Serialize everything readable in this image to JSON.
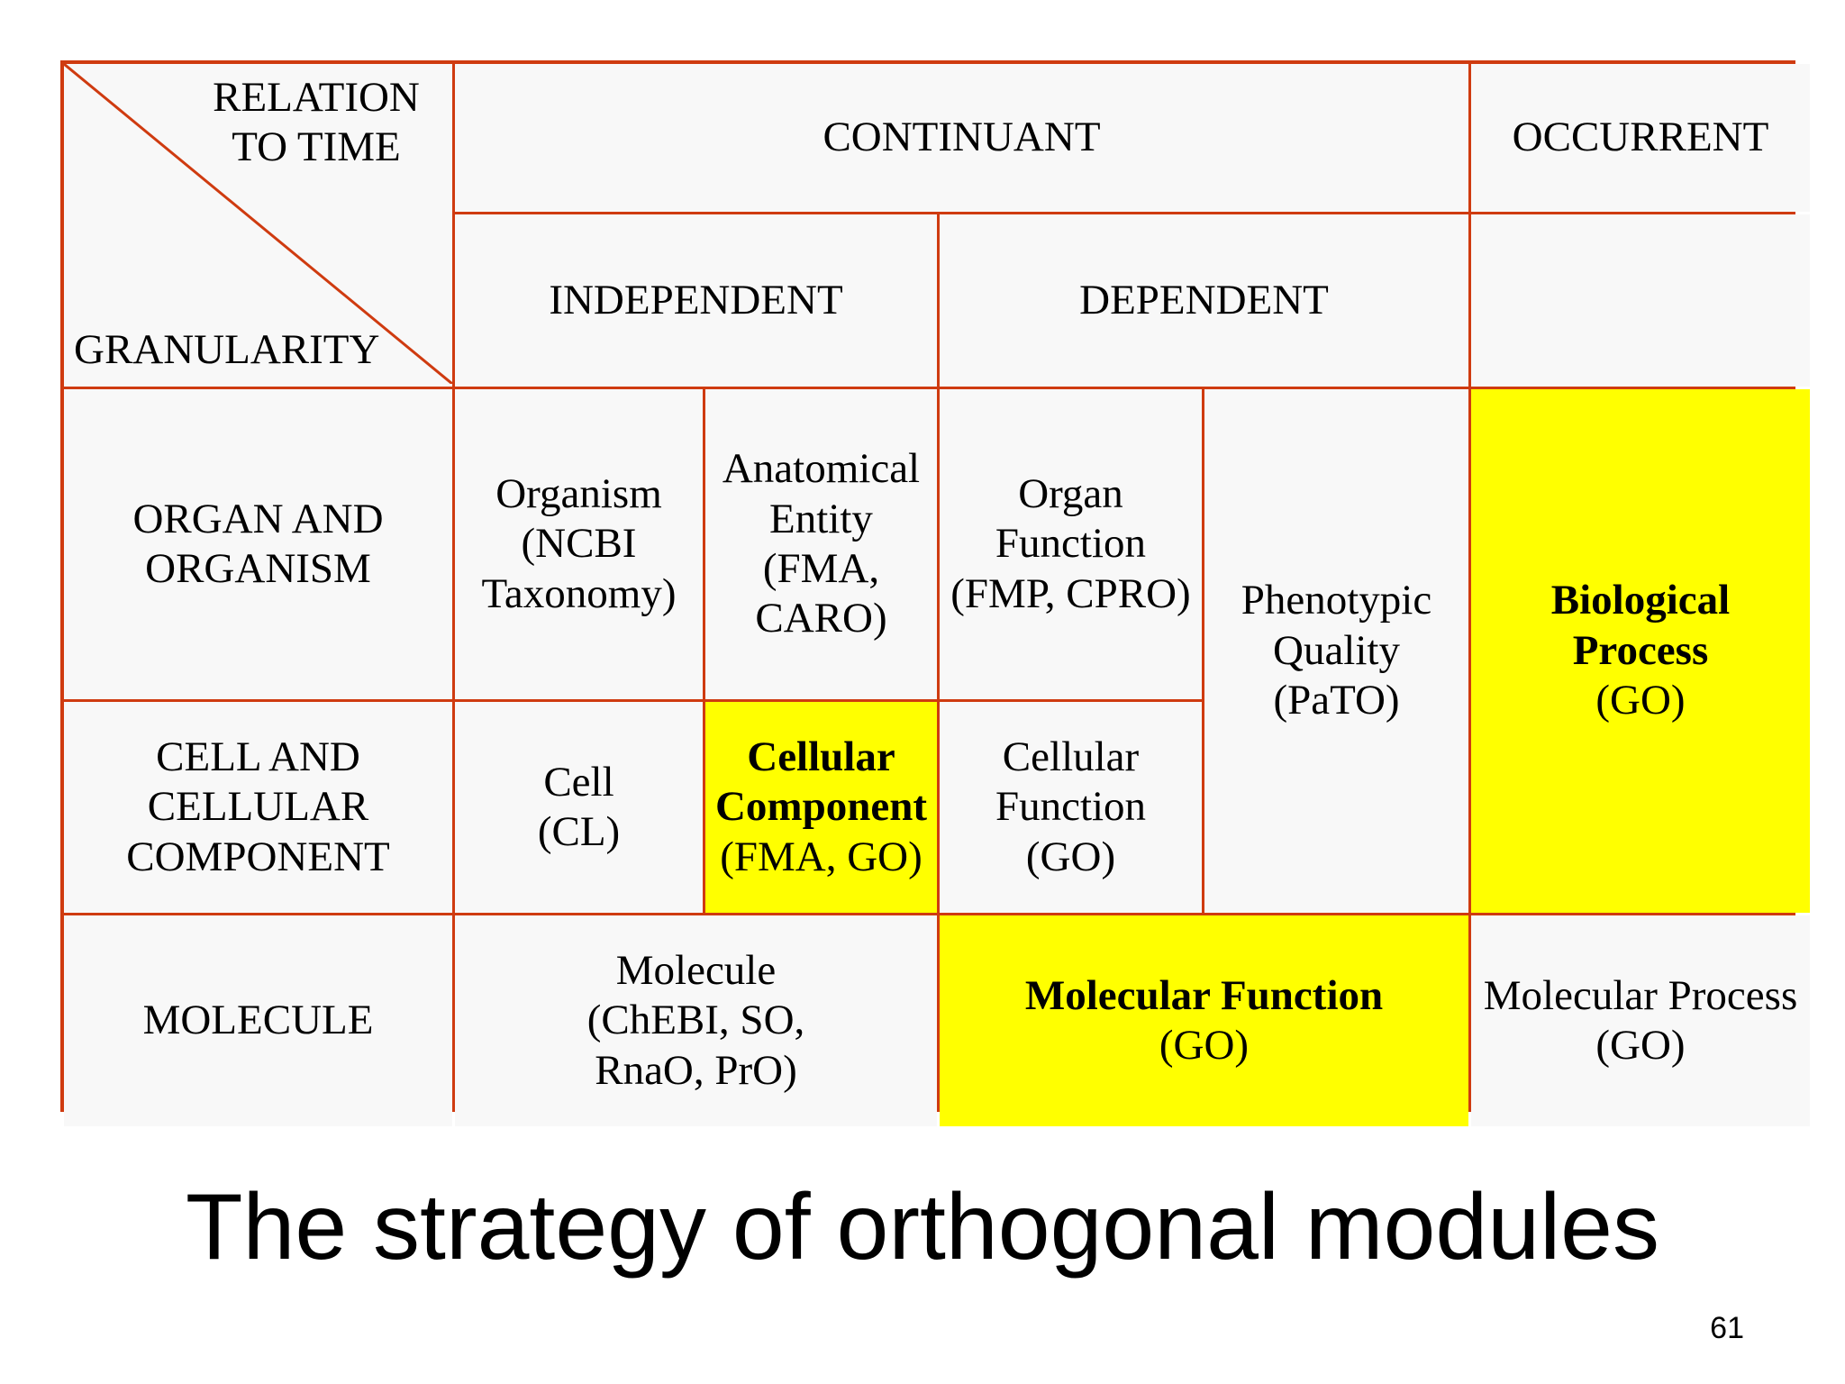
{
  "matrix": {
    "corner": {
      "relation_label": "RELATION\nTO TIME",
      "granularity_label": "GRANULARITY"
    },
    "columns": {
      "continuant": "CONTINUANT",
      "occurrent": "OCCURRENT",
      "independent": "INDEPENDENT",
      "dependent": "DEPENDENT"
    },
    "rows": {
      "organ_organism": "ORGAN AND\nORGANISM",
      "cell": "CELL AND\nCELLULAR\nCOMPONENT",
      "molecule": "MOLECULE"
    },
    "cells": {
      "organism": "Organism\n(NCBI\nTaxonomy)",
      "anatomical_entity": "Anatomical\nEntity\n(FMA,\nCARO)",
      "organ_function": "Organ\nFunction\n(FMP, CPRO)",
      "phenotypic_quality": "Phenotypic\nQuality\n(PaTO)",
      "biological_process_title": "Biological\nProcess",
      "biological_process_source": "(GO)",
      "cell": "Cell\n(CL)",
      "cellular_component_title": "Cellular\nComponent",
      "cellular_component_source": "(FMA, GO)",
      "cellular_function": "Cellular\nFunction\n(GO)",
      "molecule": "Molecule\n(ChEBI, SO,\nRnaO, PrO)",
      "molecular_function_title": "Molecular Function",
      "molecular_function_source": "(GO)",
      "molecular_process": "Molecular Process\n(GO)"
    },
    "highlight_color": "#ffff00",
    "border_color": "#cf3b10"
  },
  "caption": "The strategy of orthogonal modules",
  "page_number": "61"
}
